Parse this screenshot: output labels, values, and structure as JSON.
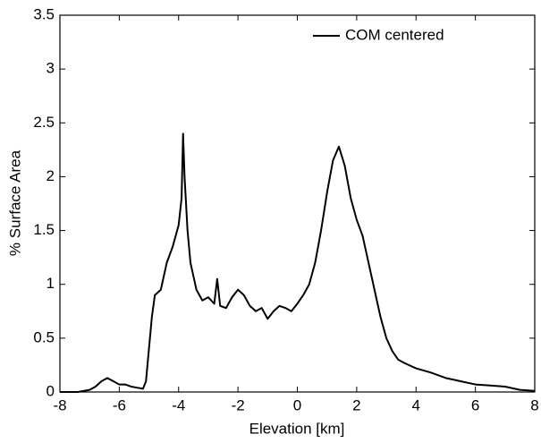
{
  "chart_data": {
    "type": "line",
    "xlabel": "Elevation [km]",
    "ylabel": "% Surface Area",
    "x": [
      -8,
      -7.4,
      -7,
      -6.8,
      -6.6,
      -6.4,
      -6.2,
      -6,
      -5.8,
      -5.6,
      -5.4,
      -5.2,
      -5.1,
      -5,
      -4.9,
      -4.8,
      -4.6,
      -4.4,
      -4.2,
      -4,
      -3.9,
      -3.85,
      -3.8,
      -3.7,
      -3.6,
      -3.4,
      -3.2,
      -3,
      -2.8,
      -2.7,
      -2.6,
      -2.4,
      -2.2,
      -2,
      -1.8,
      -1.6,
      -1.4,
      -1.2,
      -1,
      -0.8,
      -0.6,
      -0.4,
      -0.2,
      0,
      0.2,
      0.4,
      0.6,
      0.8,
      1,
      1.2,
      1.4,
      1.6,
      1.8,
      2,
      2.2,
      2.4,
      2.6,
      2.8,
      3,
      3.2,
      3.4,
      3.6,
      4,
      4.5,
      5,
      5.5,
      6,
      6.5,
      7,
      7.5,
      8
    ],
    "series": [
      {
        "name": "COM centered",
        "color": "#000000",
        "values": [
          0,
          0,
          0.02,
          0.05,
          0.1,
          0.13,
          0.1,
          0.07,
          0.07,
          0.05,
          0.04,
          0.03,
          0.1,
          0.4,
          0.7,
          0.9,
          0.95,
          1.2,
          1.35,
          1.55,
          1.8,
          2.4,
          2.0,
          1.5,
          1.2,
          0.95,
          0.85,
          0.88,
          0.82,
          1.05,
          0.8,
          0.78,
          0.88,
          0.95,
          0.9,
          0.8,
          0.75,
          0.78,
          0.68,
          0.75,
          0.8,
          0.78,
          0.75,
          0.82,
          0.9,
          1.0,
          1.2,
          1.5,
          1.85,
          2.15,
          2.28,
          2.1,
          1.8,
          1.6,
          1.45,
          1.2,
          0.95,
          0.7,
          0.5,
          0.38,
          0.3,
          0.27,
          0.22,
          0.18,
          0.13,
          0.1,
          0.07,
          0.06,
          0.05,
          0.02,
          0.01
        ]
      }
    ],
    "xlim": [
      -8,
      8
    ],
    "xticks": [
      -8,
      -6,
      -4,
      -2,
      0,
      2,
      4,
      6,
      8
    ],
    "ylim": [
      0,
      3.5
    ],
    "yticks": [
      0,
      0.5,
      1,
      1.5,
      2,
      2.5,
      3,
      3.5
    ],
    "legend": "upper right"
  }
}
